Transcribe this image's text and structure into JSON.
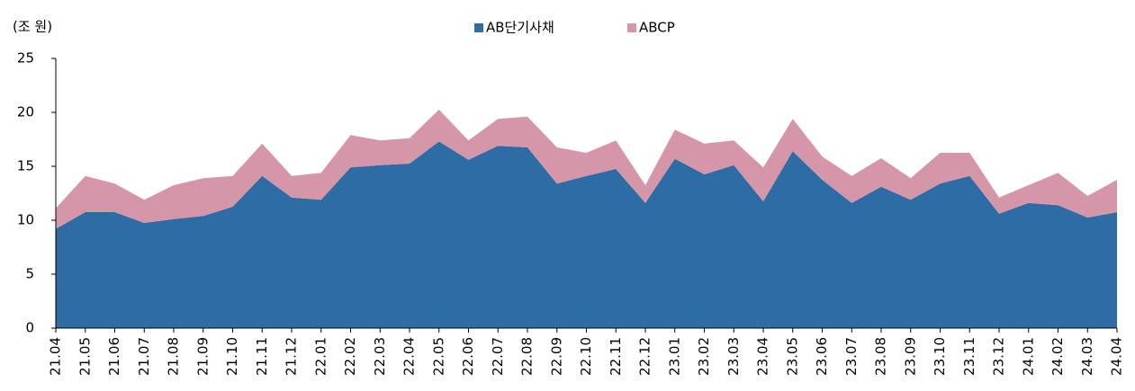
{
  "chart_data": {
    "type": "stacked_area",
    "y_axis_label": "(조 원)",
    "categories": [
      "21.04",
      "21.05",
      "21.06",
      "21.07",
      "21.08",
      "21.09",
      "21.10",
      "21.11",
      "21.12",
      "22.01",
      "22.02",
      "22.03",
      "22.04",
      "22.05",
      "22.06",
      "22.07",
      "22.08",
      "22.09",
      "22.10",
      "22.11",
      "22.12",
      "23.01",
      "23.02",
      "23.03",
      "23.04",
      "23.05",
      "23.06",
      "23.07",
      "23.08",
      "23.09",
      "23.10",
      "23.11",
      "23.12",
      "24.01",
      "24.02",
      "24.03",
      "24.04"
    ],
    "series": [
      {
        "name": "AB단기사채",
        "color": "#2e6ca6",
        "values": [
          9.2,
          10.75,
          10.75,
          9.75,
          10.1,
          10.4,
          11.25,
          14.1,
          12.1,
          11.9,
          14.9,
          15.1,
          15.25,
          17.3,
          15.6,
          16.9,
          16.75,
          13.4,
          14.1,
          14.75,
          11.6,
          15.7,
          14.25,
          15.1,
          11.75,
          16.4,
          13.75,
          11.6,
          13.1,
          11.9,
          13.4,
          14.1,
          10.6,
          11.6,
          11.4,
          10.25,
          10.75
        ]
      },
      {
        "name": "ABCP",
        "color": "#d596a8",
        "values": [
          1.9,
          3.35,
          2.65,
          2.15,
          3.15,
          3.5,
          2.85,
          3.0,
          2.0,
          2.5,
          3.0,
          2.3,
          2.35,
          2.95,
          1.8,
          2.5,
          2.85,
          3.35,
          2.15,
          2.65,
          1.65,
          2.7,
          2.85,
          2.3,
          3.15,
          3.0,
          2.15,
          2.5,
          2.65,
          2.0,
          2.85,
          2.15,
          1.5,
          1.65,
          3.0,
          2.0,
          3.0
        ]
      }
    ],
    "ylim": [
      0,
      25
    ],
    "yticks": [
      0,
      5,
      10,
      15,
      20,
      25
    ],
    "legend": "top"
  }
}
